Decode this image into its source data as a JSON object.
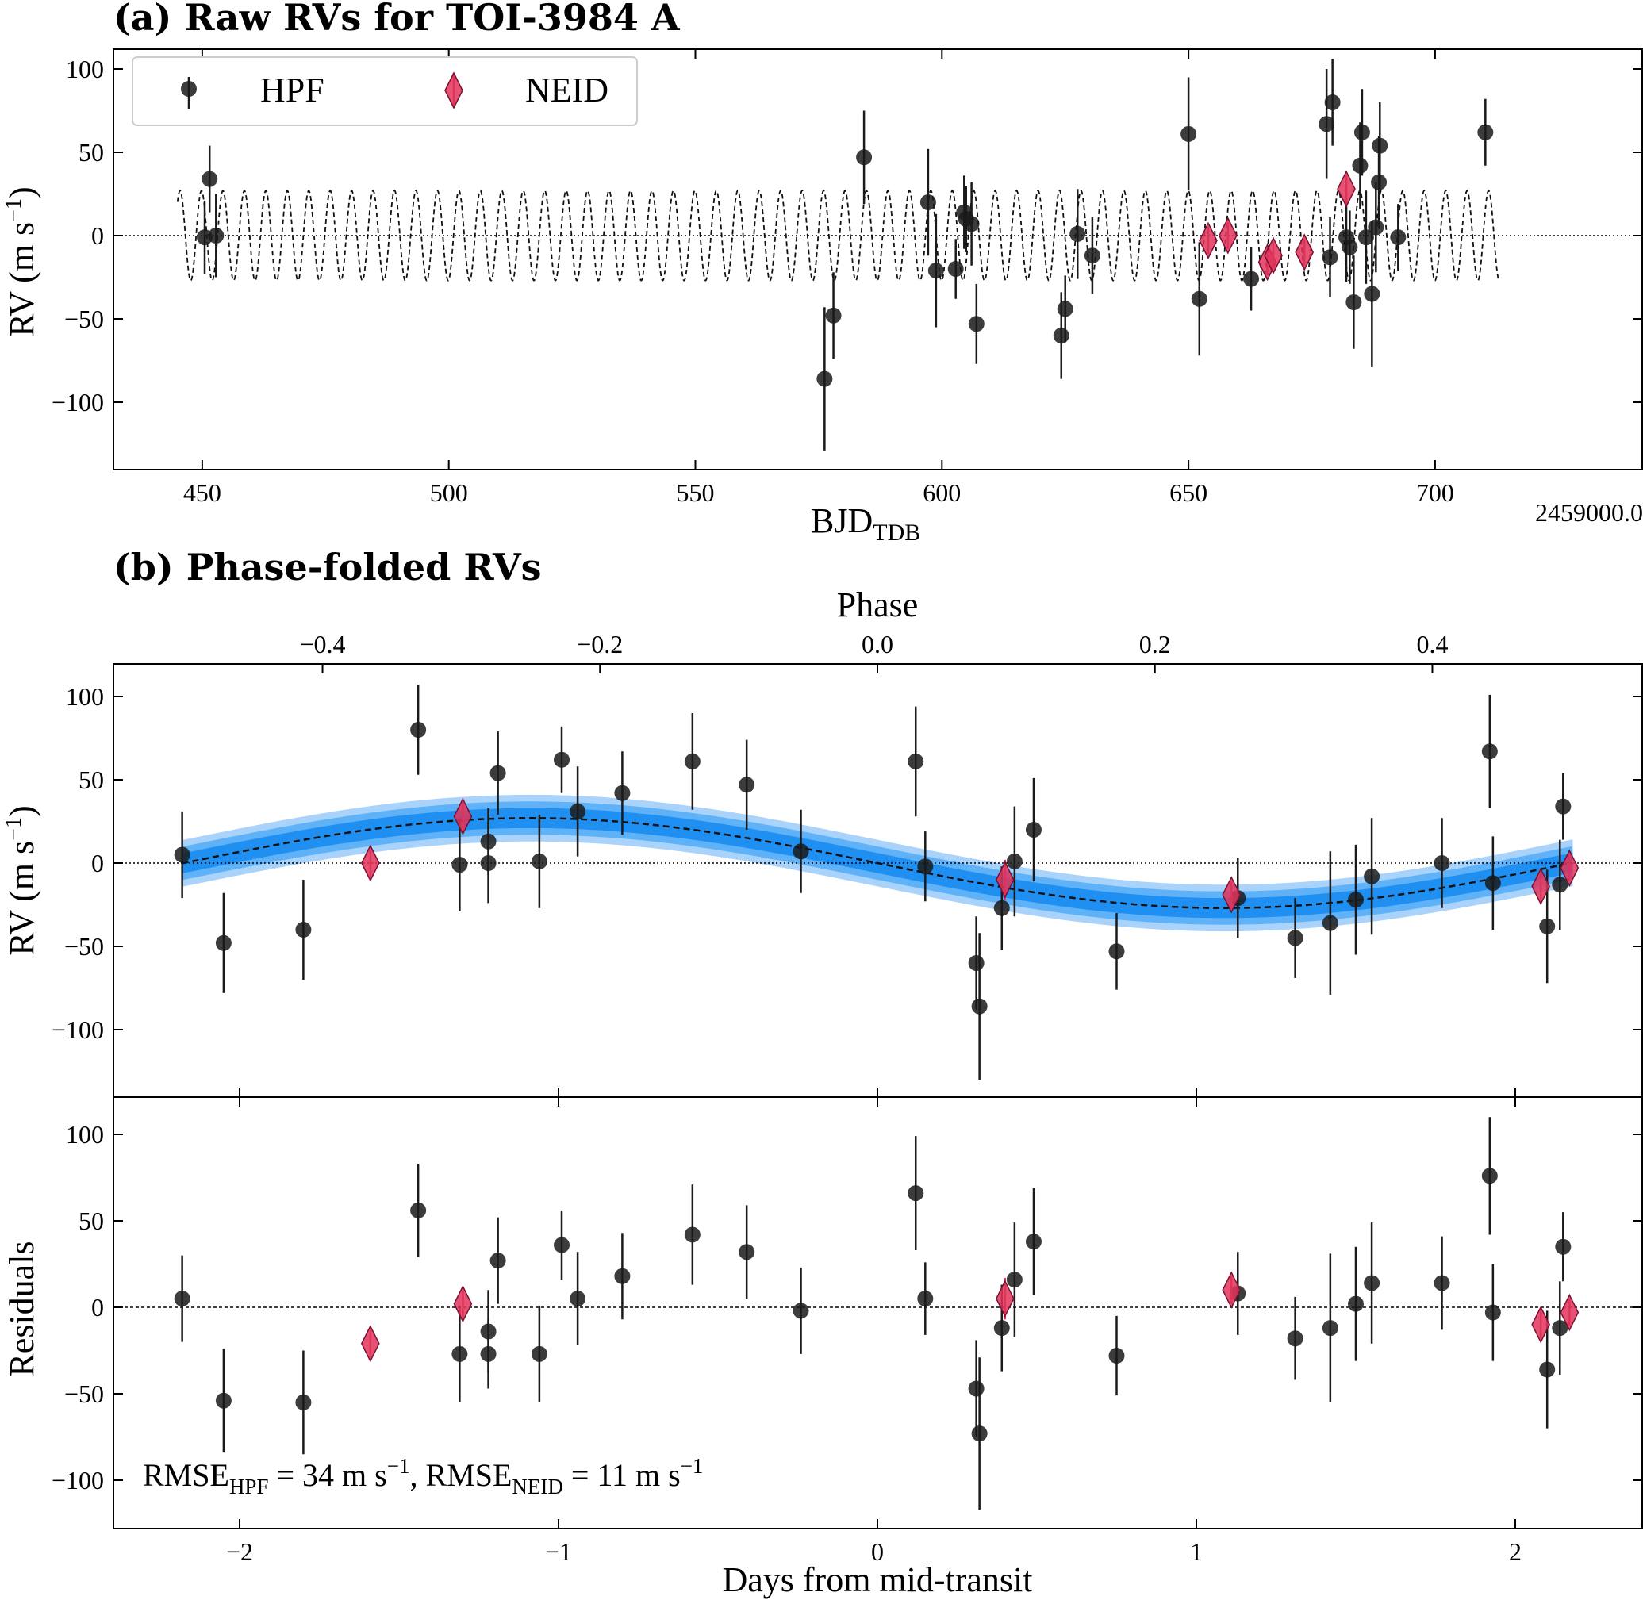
{
  "colors": {
    "hpf": "#1a1a1a",
    "neid": "#e0345a",
    "neid_edge": "#7a1030",
    "band_outer": "#a9d3fb",
    "band_mid": "#5fb2f7",
    "band_inner": "#1f8ff2"
  },
  "panel_a": {
    "title": "(a) Raw RVs for TOI-3984 A",
    "xlabel": "BJD",
    "xlabel_sub": "TDB",
    "offset_label": "2459000.0",
    "ylabel": "RV (m s",
    "ylabel_sup": "−1",
    "ylabel_close": ")",
    "legend_hpf": "HPF",
    "legend_neid": "NEID",
    "xticks": [
      "450",
      "500",
      "550",
      "600",
      "650",
      "700"
    ],
    "yticks": [
      "100",
      "50",
      "0",
      "−50",
      "−100"
    ]
  },
  "panel_b": {
    "title": "(b) Phase-folded RVs",
    "top_xlabel": "Phase",
    "top_xticks": [
      "−0.4",
      "−0.2",
      "0.0",
      "0.2",
      "0.4"
    ],
    "ylabel": "RV (m s",
    "ylabel_sup": "−1",
    "ylabel_close": ")",
    "yticks": [
      "100",
      "50",
      "0",
      "−50",
      "−100"
    ]
  },
  "panel_c": {
    "ylabel": "Residuals",
    "xlabel": "Days from mid-transit",
    "xticks": [
      "−2",
      "−1",
      "0",
      "1",
      "2"
    ],
    "yticks": [
      "100",
      "50",
      "0",
      "−50",
      "−100"
    ],
    "rmse_label": "RMSE",
    "rmse_hpf_sub": "HPF",
    "rmse_hpf_value": " = 34 m s",
    "rmse_sup": "−1",
    "rmse_sep": ", RMSE",
    "rmse_neid_sub": "NEID",
    "rmse_neid_value": " = 11 m s"
  },
  "chart_data": [
    {
      "type": "scatter",
      "title": "(a) Raw RVs for TOI-3984 A",
      "xlabel": "BJD_TDB - 2459000.0",
      "ylabel": "RV (m s^-1)",
      "xlim": [
        432,
        742
      ],
      "ylim": [
        -140,
        120
      ],
      "model": {
        "type": "sine",
        "amplitude": 27,
        "period": 4.35,
        "t0": 445.5,
        "x_range": [
          445,
          713
        ]
      },
      "series": [
        {
          "name": "HPF",
          "marker": "circle",
          "x": [
            450.5,
            451.5,
            452.8,
            576.2,
            578.0,
            584.2,
            597.2,
            598.8,
            602.8,
            604.5,
            604.9,
            606.0,
            607.0,
            624.2,
            625.0,
            627.5,
            630.5,
            650.0,
            652.2,
            662.7,
            678.0,
            678.7,
            679.2,
            682.0,
            682.7,
            683.5,
            684.8,
            685.2,
            686.0,
            687.2,
            688.0,
            688.6,
            688.8,
            692.5,
            710.2
          ],
          "y": [
            -1,
            34,
            0,
            -86,
            -48,
            47,
            20,
            -21,
            -20,
            14,
            10,
            7,
            -53,
            -60,
            -44,
            1,
            -12,
            61,
            -38,
            -26,
            67,
            -13,
            80,
            -1,
            -7,
            -40,
            42,
            62,
            -1,
            -35,
            5,
            32,
            54,
            -1,
            62
          ],
          "err": [
            22,
            20,
            25,
            43,
            26,
            28,
            32,
            34,
            18,
            22,
            20,
            25,
            24,
            26,
            20,
            27,
            23,
            34,
            34,
            19,
            33,
            24,
            26,
            27,
            22,
            28,
            26,
            26,
            28,
            44,
            27,
            28,
            26,
            20,
            20
          ]
        },
        {
          "name": "NEID",
          "marker": "diamond",
          "x": [
            654.0,
            658.0,
            666.0,
            667.2,
            673.5,
            682.0
          ],
          "y": [
            -3,
            0,
            -16,
            -12,
            -10,
            28
          ],
          "err": [
            8,
            8,
            8,
            8,
            8,
            8
          ]
        }
      ]
    },
    {
      "type": "scatter",
      "title": "(b) Phase-folded RVs",
      "xlabel": "Days from mid-transit",
      "top_xlabel": "Phase",
      "ylabel": "RV (m s^-1)",
      "xlim": [
        -2.4,
        2.3
      ],
      "ylim": [
        -140,
        120
      ],
      "model": {
        "type": "sine",
        "amplitude": 27,
        "period": 4.35,
        "band_inner": 6,
        "band_mid": 10,
        "band_outer": 14
      },
      "series": [
        {
          "name": "HPF",
          "marker": "circle",
          "x": [
            -2.18,
            -2.05,
            -1.8,
            -1.44,
            -1.31,
            -1.22,
            -1.22,
            -1.19,
            -1.06,
            -0.99,
            -0.94,
            -0.8,
            -0.58,
            -0.41,
            -0.24,
            0.12,
            0.15,
            0.39,
            0.31,
            0.32,
            0.43,
            0.49,
            0.75,
            1.13,
            1.31,
            1.42,
            1.5,
            1.55,
            1.77,
            1.92,
            1.93,
            2.1,
            2.14,
            2.15
          ],
          "y": [
            5,
            -48,
            -40,
            80,
            -1,
            0,
            13,
            54,
            1,
            62,
            31,
            42,
            61,
            47,
            7,
            61,
            -2,
            -27,
            -60,
            -86,
            1,
            20,
            -53,
            -21,
            -45,
            -36,
            -22,
            -8,
            0,
            67,
            -12,
            -38,
            -13,
            34
          ],
          "err": [
            26,
            30,
            30,
            27,
            28,
            24,
            20,
            25,
            28,
            20,
            27,
            25,
            29,
            27,
            25,
            33,
            21,
            25,
            28,
            44,
            33,
            31,
            23,
            24,
            24,
            43,
            33,
            35,
            27,
            34,
            28,
            34,
            27,
            20
          ]
        },
        {
          "name": "NEID",
          "marker": "diamond",
          "x": [
            -1.59,
            -1.3,
            0.4,
            1.11,
            2.08,
            2.17
          ],
          "y": [
            0,
            28,
            -10,
            -19,
            -14,
            -3
          ],
          "err": [
            8,
            8,
            12,
            8,
            8,
            8
          ]
        }
      ]
    },
    {
      "type": "scatter",
      "title": "Residuals",
      "xlabel": "Days from mid-transit",
      "ylabel": "Residuals",
      "xlim": [
        -2.4,
        2.3
      ],
      "ylim": [
        -130,
        120
      ],
      "annotation": "RMSE_HPF = 34 m s^-1, RMSE_NEID = 11 m s^-1",
      "series": [
        {
          "name": "HPF",
          "marker": "circle",
          "x": [
            -2.18,
            -2.05,
            -1.8,
            -1.44,
            -1.31,
            -1.22,
            -1.22,
            -1.19,
            -1.06,
            -0.99,
            -0.94,
            -0.8,
            -0.58,
            -0.41,
            -0.24,
            0.12,
            0.15,
            0.39,
            0.31,
            0.32,
            0.43,
            0.49,
            0.75,
            1.13,
            1.31,
            1.42,
            1.5,
            1.55,
            1.77,
            1.92,
            1.93,
            2.1,
            2.14,
            2.15
          ],
          "y": [
            5,
            -54,
            -55,
            56,
            -27,
            -14,
            -27,
            27,
            -27,
            36,
            5,
            18,
            42,
            32,
            -2,
            66,
            5,
            -12,
            -47,
            -73,
            16,
            38,
            -28,
            8,
            -18,
            -12,
            2,
            14,
            14,
            76,
            -3,
            -36,
            -12,
            35
          ],
          "err": [
            25,
            30,
            30,
            27,
            28,
            24,
            20,
            25,
            28,
            20,
            27,
            25,
            29,
            27,
            25,
            33,
            21,
            25,
            28,
            44,
            33,
            31,
            23,
            24,
            24,
            43,
            33,
            35,
            27,
            34,
            28,
            34,
            27,
            20
          ]
        },
        {
          "name": "NEID",
          "marker": "diamond",
          "x": [
            -1.59,
            -1.3,
            0.4,
            1.11,
            2.08,
            2.17
          ],
          "y": [
            -21,
            2,
            5,
            10,
            -10,
            -3
          ],
          "err": [
            8,
            8,
            12,
            8,
            8,
            8
          ]
        }
      ]
    }
  ]
}
